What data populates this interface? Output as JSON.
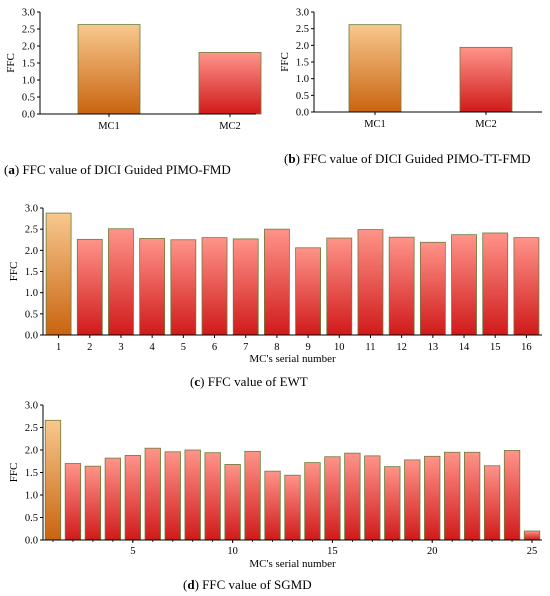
{
  "colors": {
    "bar_top": "#ff8f86",
    "bar_bottom": "#d42020",
    "first_top": "#f7c38b",
    "first_bottom": "#c96a10",
    "bar_stroke": "#6e7b3a",
    "axis": "#000000"
  },
  "captions": {
    "a": {
      "letter": "a",
      "text": " FFC value of DICI Guided PIMO-FMD"
    },
    "b": {
      "letter": "b",
      "text": " FFC value of DICI Guided PIMO-TT-FMD"
    },
    "c": {
      "letter": "c",
      "text": " FFC value of EWT"
    },
    "d": {
      "letter": "d",
      "text": " FFC value of SGMD"
    }
  },
  "chart_data": [
    {
      "id": "a",
      "type": "bar",
      "ylabel": "FFC",
      "xlabel": "",
      "ylim": [
        0,
        3.0
      ],
      "yticks": [
        "0.0",
        "0.5",
        "1.0",
        "1.5",
        "2.0",
        "2.5",
        "3.0"
      ],
      "categories": [
        "MC1",
        "MC2"
      ],
      "values": [
        2.63,
        1.81
      ]
    },
    {
      "id": "b",
      "type": "bar",
      "ylabel": "FFC",
      "xlabel": "",
      "ylim": [
        0,
        3.0
      ],
      "yticks": [
        "0.0",
        "0.5",
        "1.0",
        "1.5",
        "2.0",
        "2.5",
        "3.0"
      ],
      "categories": [
        "MC1",
        "MC2"
      ],
      "values": [
        2.62,
        1.94
      ]
    },
    {
      "id": "c",
      "type": "bar",
      "ylabel": "FFC",
      "xlabel": "MC's serial number",
      "ylim": [
        0,
        3.0
      ],
      "yticks": [
        "0.0",
        "0.5",
        "1.0",
        "1.5",
        "2.0",
        "2.5",
        "3.0"
      ],
      "categories": [
        "1",
        "2",
        "3",
        "4",
        "5",
        "6",
        "7",
        "8",
        "9",
        "10",
        "11",
        "12",
        "13",
        "14",
        "15",
        "16"
      ],
      "values": [
        2.88,
        2.26,
        2.51,
        2.28,
        2.25,
        2.3,
        2.27,
        2.5,
        2.06,
        2.29,
        2.49,
        2.31,
        2.19,
        2.37,
        2.41,
        2.3
      ]
    },
    {
      "id": "d",
      "type": "bar",
      "ylabel": "FFC",
      "xlabel": "MC's serial number",
      "ylim": [
        0,
        3.0
      ],
      "yticks": [
        "0.0",
        "0.5",
        "1.0",
        "1.5",
        "2.0",
        "2.5",
        "3.0"
      ],
      "categories": [
        "1",
        "2",
        "3",
        "4",
        "5",
        "6",
        "7",
        "8",
        "9",
        "10",
        "11",
        "12",
        "13",
        "14",
        "15",
        "16",
        "17",
        "18",
        "19",
        "20",
        "21",
        "22",
        "23",
        "24",
        "25"
      ],
      "tick_labels": [
        "5",
        "10",
        "15",
        "20",
        "25"
      ],
      "tick_positions": [
        5,
        10,
        15,
        20,
        25
      ],
      "values": [
        2.66,
        1.7,
        1.64,
        1.82,
        1.88,
        2.04,
        1.96,
        2.0,
        1.94,
        1.68,
        1.97,
        1.53,
        1.44,
        1.72,
        1.85,
        1.93,
        1.87,
        1.63,
        1.78,
        1.86,
        1.95,
        1.95,
        1.65,
        1.99,
        0.2
      ]
    }
  ]
}
